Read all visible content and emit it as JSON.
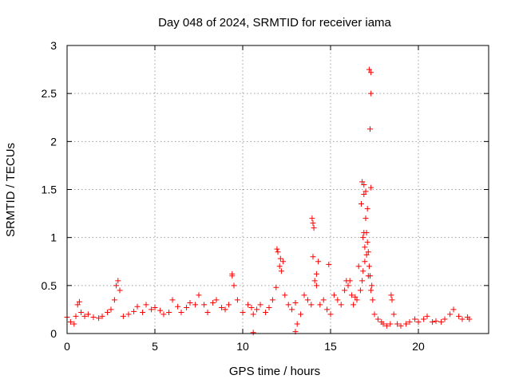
{
  "chart_data": {
    "type": "scatter",
    "title": "Day 048 of 2024, SRMTID for receiver iama",
    "xlabel": "GPS time / hours",
    "ylabel": "SRMTID / TECUs",
    "xlim": [
      0,
      24
    ],
    "ylim": [
      0,
      3
    ],
    "xticks": [
      0,
      5,
      10,
      15,
      20
    ],
    "xtick_labels": [
      "0",
      "5",
      "10",
      "15",
      "20"
    ],
    "yticks": [
      0,
      0.5,
      1,
      1.5,
      2,
      2.5,
      3
    ],
    "ytick_labels": [
      "0",
      "0.5",
      "1",
      "1.5",
      "2",
      "2.5",
      "3"
    ],
    "grid": true,
    "marker": "+",
    "series": [
      {
        "name": "SRMTID",
        "color": "#ff0000",
        "x": [
          0.0,
          0.2,
          0.4,
          0.5,
          0.6,
          0.7,
          0.8,
          1.0,
          1.2,
          1.5,
          1.8,
          2.0,
          2.3,
          2.5,
          2.7,
          2.8,
          2.9,
          3.0,
          3.2,
          3.5,
          3.8,
          4.0,
          4.3,
          4.5,
          4.8,
          5.0,
          5.3,
          5.5,
          5.8,
          6.0,
          6.3,
          6.5,
          6.8,
          7.0,
          7.3,
          7.5,
          7.8,
          8.0,
          8.3,
          8.5,
          8.8,
          9.0,
          9.2,
          9.4,
          9.5,
          9.7,
          10.0,
          10.3,
          10.5,
          10.6,
          10.8,
          11.0,
          11.3,
          11.5,
          11.7,
          11.9,
          12.0,
          12.1,
          12.2,
          12.3,
          12.4,
          12.6,
          12.8,
          13.0,
          13.1,
          13.3,
          13.5,
          13.7,
          13.9,
          14.0,
          14.1,
          14.2,
          14.4,
          14.6,
          14.8,
          15.0,
          15.2,
          15.4,
          15.6,
          15.8,
          16.0,
          16.1,
          16.2,
          16.3,
          16.5,
          16.6,
          16.7,
          16.8,
          16.85,
          16.9,
          16.95,
          17.0,
          17.05,
          17.1,
          17.15,
          17.2,
          17.25,
          17.3,
          17.35,
          17.4,
          17.5,
          17.7,
          17.9,
          18.0,
          18.2,
          18.4,
          18.45,
          18.5,
          18.6,
          18.8,
          19.0,
          19.3,
          19.5,
          19.8,
          20.0,
          20.3,
          20.5,
          20.8,
          21.0,
          21.3,
          21.5,
          21.8,
          22.0,
          22.3,
          22.5,
          22.8,
          22.9,
          13.95,
          14.0,
          14.05,
          14.3,
          14.9,
          13.0,
          10.6,
          17.2,
          17.3,
          17.3,
          17.25,
          17.3,
          16.8,
          16.9,
          16.75,
          17.0,
          17.1,
          16.9,
          16.85,
          16.95,
          17.05,
          17.15,
          9.4,
          11.95,
          12.15,
          14.2,
          15.9,
          16.4
        ],
        "y": [
          0.17,
          0.12,
          0.1,
          0.18,
          0.3,
          0.33,
          0.22,
          0.18,
          0.2,
          0.17,
          0.16,
          0.18,
          0.22,
          0.25,
          0.35,
          0.5,
          0.55,
          0.45,
          0.18,
          0.2,
          0.23,
          0.28,
          0.22,
          0.3,
          0.25,
          0.27,
          0.24,
          0.2,
          0.22,
          0.35,
          0.28,
          0.22,
          0.27,
          0.32,
          0.3,
          0.4,
          0.3,
          0.22,
          0.32,
          0.35,
          0.27,
          0.25,
          0.3,
          0.6,
          0.5,
          0.35,
          0.22,
          0.3,
          0.27,
          0.2,
          0.25,
          0.3,
          0.22,
          0.27,
          0.35,
          0.48,
          0.85,
          0.7,
          0.65,
          0.75,
          0.4,
          0.3,
          0.25,
          0.32,
          0.1,
          0.2,
          0.4,
          0.35,
          0.3,
          0.8,
          0.55,
          0.5,
          0.3,
          0.35,
          0.25,
          0.2,
          0.4,
          0.35,
          0.3,
          0.45,
          0.5,
          0.55,
          0.4,
          0.3,
          0.35,
          0.7,
          0.45,
          0.55,
          1.0,
          1.55,
          0.9,
          1.2,
          1.05,
          1.3,
          0.85,
          0.7,
          0.6,
          0.45,
          0.5,
          0.35,
          0.2,
          0.15,
          0.12,
          0.1,
          0.08,
          0.1,
          0.4,
          0.35,
          0.2,
          0.1,
          0.08,
          0.1,
          0.12,
          0.15,
          0.12,
          0.15,
          0.18,
          0.12,
          0.13,
          0.12,
          0.15,
          0.2,
          0.25,
          0.18,
          0.15,
          0.17,
          0.15,
          1.2,
          1.15,
          1.1,
          0.75,
          0.72,
          0.02,
          0.01,
          2.75,
          2.72,
          2.5,
          2.13,
          1.52,
          1.58,
          1.45,
          1.35,
          1.48,
          0.95,
          1.05,
          0.65,
          0.75,
          0.82,
          0.6,
          0.62,
          0.88,
          0.78,
          0.62,
          0.55,
          0.38
        ]
      }
    ]
  }
}
